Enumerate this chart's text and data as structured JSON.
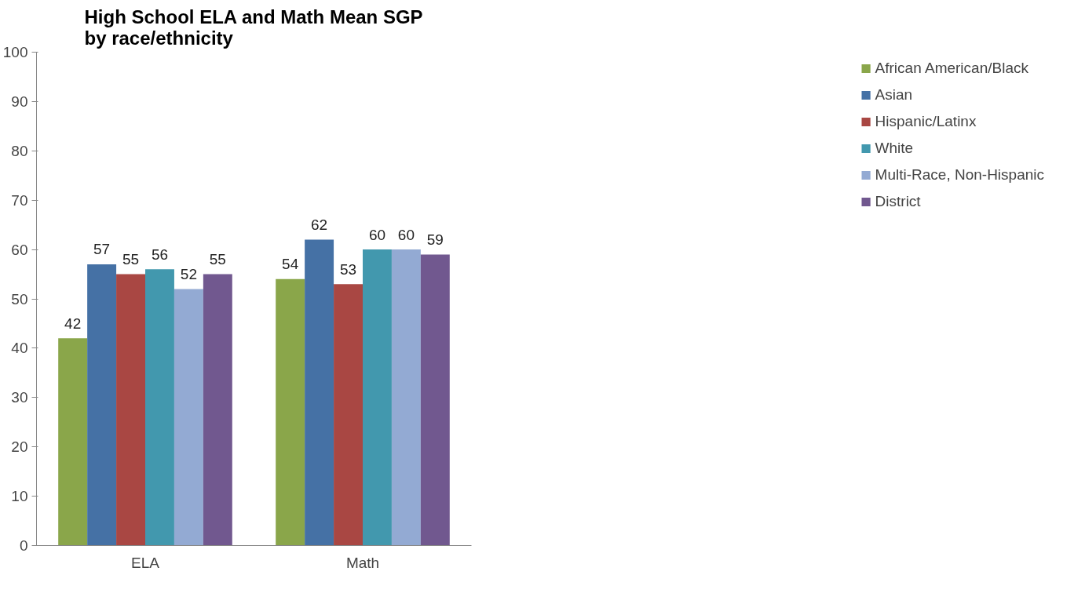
{
  "chart_data": {
    "type": "bar",
    "title": "High School ELA and Math Mean SGP\nby race/ethnicity",
    "categories": [
      "ELA",
      "Math"
    ],
    "series": [
      {
        "name": "African American/Black",
        "color": "#8aa64a",
        "values": [
          42,
          54
        ]
      },
      {
        "name": "Asian",
        "color": "#4571a5",
        "values": [
          57,
          62
        ]
      },
      {
        "name": "Hispanic/Latinx",
        "color": "#a94743",
        "values": [
          55,
          53
        ]
      },
      {
        "name": "White",
        "color": "#4298ae",
        "values": [
          56,
          60
        ]
      },
      {
        "name": "Multi-Race, Non-Hispanic",
        "color": "#93aad3",
        "values": [
          52,
          60
        ]
      },
      {
        "name": "District",
        "color": "#71588f",
        "values": [
          55,
          59
        ]
      }
    ],
    "ylim": [
      0,
      100
    ],
    "yticks": [
      0,
      10,
      20,
      30,
      40,
      50,
      60,
      70,
      80,
      90,
      100
    ],
    "grid": false,
    "legend": "right",
    "data_labels": true
  }
}
